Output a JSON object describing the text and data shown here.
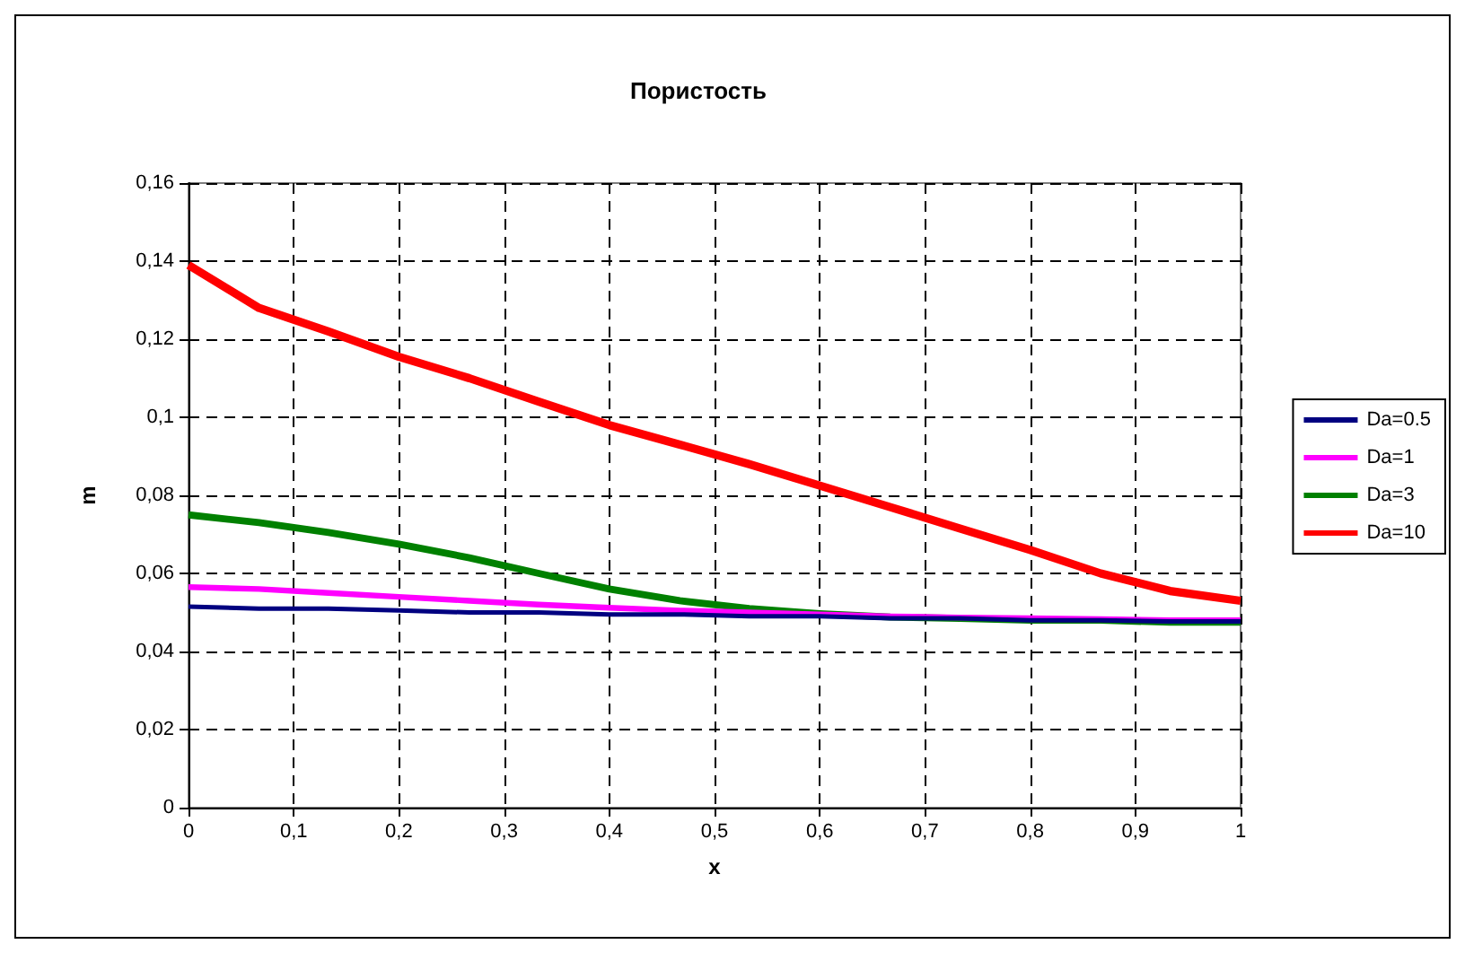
{
  "chart_data": {
    "type": "line",
    "title": "Пористость",
    "xlabel": "x",
    "ylabel": "m",
    "x": [
      0,
      0.067,
      0.133,
      0.2,
      0.267,
      0.333,
      0.4,
      0.467,
      0.533,
      0.6,
      0.667,
      0.733,
      0.8,
      0.867,
      0.933,
      1
    ],
    "series": [
      {
        "name": "Da=0.5",
        "color": "#000080",
        "values": [
          0.0515,
          0.051,
          0.051,
          0.0505,
          0.05,
          0.05,
          0.0495,
          0.0495,
          0.049,
          0.049,
          0.0485,
          0.0485,
          0.048,
          0.048,
          0.0477,
          0.0477
        ]
      },
      {
        "name": "Da=1",
        "color": "#ff00ff",
        "values": [
          0.0565,
          0.056,
          0.055,
          0.054,
          0.053,
          0.052,
          0.0512,
          0.0505,
          0.05,
          0.0495,
          0.049,
          0.0487,
          0.0485,
          0.0483,
          0.048,
          0.048
        ]
      },
      {
        "name": "Da=3",
        "color": "#008000",
        "values": [
          0.075,
          0.073,
          0.0705,
          0.0675,
          0.064,
          0.06,
          0.056,
          0.053,
          0.051,
          0.0497,
          0.0488,
          0.0485,
          0.048,
          0.048,
          0.0475,
          0.0475
        ]
      },
      {
        "name": "Da=10",
        "color": "#ff0000",
        "values": [
          0.139,
          0.128,
          0.122,
          0.1155,
          0.11,
          0.104,
          0.098,
          0.093,
          0.088,
          0.0825,
          0.077,
          0.0715,
          0.066,
          0.06,
          0.0555,
          0.053
        ]
      }
    ],
    "xlim": [
      0,
      1
    ],
    "xticks": [
      0,
      {
        "value": 0.1,
        "label": "0,1"
      },
      {
        "value": 0.2,
        "label": "0,2"
      },
      {
        "value": 0.3,
        "label": "0,3"
      },
      {
        "value": 0.4,
        "label": "0,4"
      },
      {
        "value": 0.5,
        "label": "0,5"
      },
      {
        "value": 0.6,
        "label": "0,6"
      },
      {
        "value": 0.7,
        "label": "0,7"
      },
      {
        "value": 0.8,
        "label": "0,8"
      },
      {
        "value": 0.9,
        "label": "0,9"
      },
      1
    ],
    "ylim": [
      0,
      0.16
    ],
    "yticks": [
      0,
      {
        "value": 0.02,
        "label": "0,02"
      },
      {
        "value": 0.04,
        "label": "0,04"
      },
      {
        "value": 0.06,
        "label": "0,06"
      },
      {
        "value": 0.08,
        "label": "0,08"
      },
      {
        "value": 0.1,
        "label": "0,1"
      },
      {
        "value": 0.12,
        "label": "0,12"
      },
      {
        "value": 0.14,
        "label": "0,14"
      },
      {
        "value": 0.16,
        "label": "0,16"
      }
    ],
    "grid": true,
    "legend": "right",
    "marker": "none",
    "line_style": "solid"
  }
}
